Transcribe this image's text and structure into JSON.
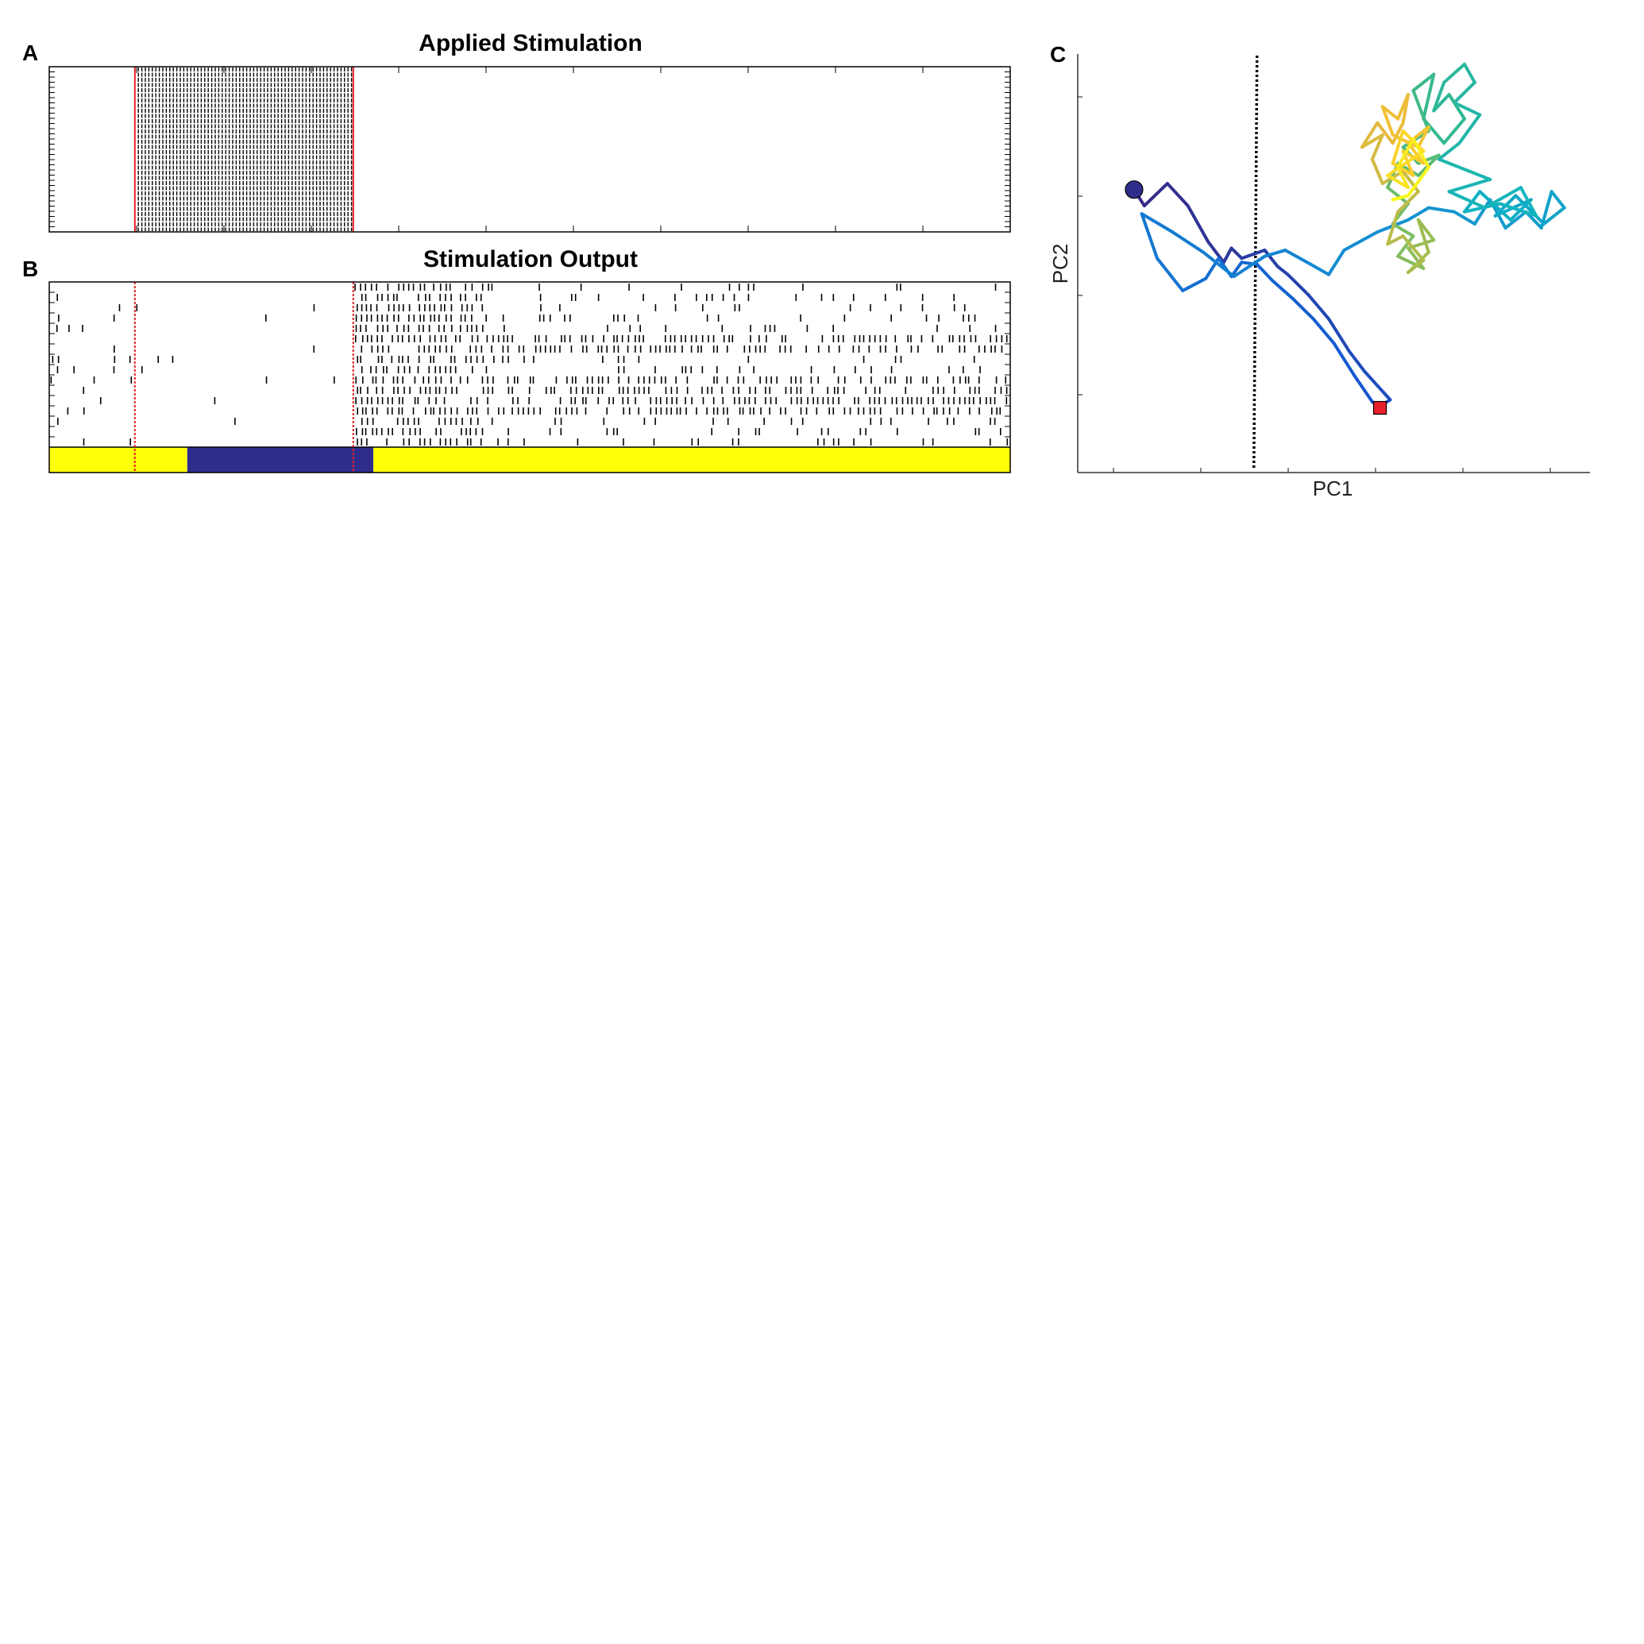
{
  "panels": {
    "a": {
      "letter": "A",
      "title": "Applied Stimulation"
    },
    "b": {
      "letter": "B",
      "title": "Stimulation Output"
    },
    "c": {
      "letter": "C",
      "xlabel": "PC1",
      "ylabel": "PC2"
    }
  },
  "colors": {
    "stim_marker": "#e8202a",
    "state_low": "#ffff0a",
    "state_high": "#2f2d8c",
    "boundary": "#000000",
    "start_marker": "#2f2d8c",
    "end_marker": "#e8202a"
  },
  "chart_data": [
    {
      "type": "raster",
      "panel": "A",
      "title": "Applied Stimulation",
      "xlim": [
        0,
        1100
      ],
      "channels": 32,
      "stim_window": [
        98,
        348
      ],
      "stim_interval": 4,
      "ticks": {
        "x": [
          0,
          100,
          200,
          300,
          400,
          500,
          600,
          700,
          800,
          900,
          1000,
          1100
        ]
      }
    },
    {
      "type": "raster",
      "panel": "B",
      "title": "Stimulation Output",
      "xlim": [
        0,
        1100
      ],
      "channels": 16,
      "stim_window": [
        98,
        348
      ],
      "state_bar": [
        {
          "start": 0,
          "end": 158,
          "state": "low"
        },
        {
          "start": 158,
          "end": 371,
          "state": "high"
        },
        {
          "start": 371,
          "end": 1100,
          "state": "low"
        }
      ],
      "spike_pattern": {
        "pre_rate": 0.12,
        "during_rate": 0.02,
        "post_burst_rate": 0.7,
        "post_rate": 0.3,
        "active_rows": [
          5,
          6,
          9,
          10,
          11,
          12
        ]
      }
    },
    {
      "type": "line",
      "panel": "C",
      "xlabel": "PC1",
      "ylabel": "PC2",
      "xlim": [
        0,
        10
      ],
      "ylim": [
        0,
        10
      ],
      "boundary_x": 3.5,
      "start_point": [
        1.1,
        7.0
      ],
      "end_point": [
        5.9,
        1.6
      ],
      "colormap": "parula",
      "trajectory": [
        [
          1.1,
          7.0
        ],
        [
          1.3,
          6.6
        ],
        [
          1.75,
          7.15
        ],
        [
          2.15,
          6.6
        ],
        [
          2.55,
          5.7
        ],
        [
          2.85,
          5.2
        ],
        [
          3.0,
          5.55
        ],
        [
          3.2,
          5.3
        ],
        [
          3.65,
          5.5
        ],
        [
          3.9,
          5.1
        ],
        [
          4.1,
          4.9
        ],
        [
          4.5,
          4.4
        ],
        [
          4.9,
          3.8
        ],
        [
          5.3,
          3.0
        ],
        [
          5.6,
          2.5
        ],
        [
          6.1,
          1.8
        ],
        [
          5.85,
          1.6
        ],
        [
          5.9,
          1.6
        ],
        [
          5.75,
          1.75
        ],
        [
          5.4,
          2.4
        ],
        [
          5.0,
          3.2
        ],
        [
          4.6,
          3.8
        ],
        [
          4.2,
          4.3
        ],
        [
          3.8,
          4.75
        ],
        [
          3.5,
          5.15
        ],
        [
          3.2,
          5.2
        ],
        [
          3.0,
          4.85
        ],
        [
          2.75,
          5.3
        ],
        [
          2.5,
          4.8
        ],
        [
          2.05,
          4.5
        ],
        [
          1.55,
          5.3
        ],
        [
          1.25,
          6.4
        ],
        [
          1.85,
          5.95
        ],
        [
          2.45,
          5.45
        ],
        [
          3.05,
          4.85
        ],
        [
          3.65,
          5.35
        ],
        [
          4.05,
          5.5
        ],
        [
          4.55,
          5.15
        ],
        [
          4.9,
          4.9
        ],
        [
          5.2,
          5.5
        ],
        [
          5.85,
          5.95
        ],
        [
          6.45,
          6.25
        ],
        [
          6.85,
          6.55
        ],
        [
          7.35,
          6.45
        ],
        [
          7.75,
          6.15
        ],
        [
          8.05,
          6.75
        ],
        [
          8.35,
          6.05
        ],
        [
          8.75,
          6.45
        ],
        [
          9.05,
          6.05
        ],
        [
          9.25,
          6.95
        ],
        [
          9.5,
          6.55
        ],
        [
          9.1,
          6.15
        ],
        [
          8.55,
          6.85
        ],
        [
          8.15,
          6.35
        ],
        [
          8.85,
          6.75
        ],
        [
          8.45,
          6.25
        ],
        [
          7.85,
          6.95
        ],
        [
          7.55,
          6.45
        ],
        [
          8.25,
          6.65
        ],
        [
          8.95,
          6.35
        ],
        [
          8.65,
          7.05
        ],
        [
          7.95,
          6.55
        ],
        [
          7.25,
          6.95
        ],
        [
          8.05,
          7.25
        ],
        [
          7.65,
          7.45
        ],
        [
          7.05,
          7.75
        ],
        [
          7.45,
          8.15
        ],
        [
          7.85,
          8.85
        ],
        [
          7.35,
          9.15
        ],
        [
          7.75,
          9.65
        ],
        [
          7.55,
          10.1
        ],
        [
          7.15,
          9.65
        ],
        [
          6.95,
          8.95
        ],
        [
          7.25,
          9.35
        ],
        [
          7.55,
          8.75
        ],
        [
          7.15,
          8.15
        ],
        [
          6.75,
          8.75
        ],
        [
          6.95,
          9.85
        ],
        [
          6.55,
          9.45
        ],
        [
          6.85,
          8.45
        ],
        [
          6.35,
          8.05
        ],
        [
          6.65,
          7.65
        ],
        [
          7.05,
          7.85
        ],
        [
          6.65,
          7.35
        ],
        [
          6.25,
          7.65
        ],
        [
          6.05,
          7.05
        ],
        [
          6.45,
          6.65
        ],
        [
          6.15,
          6.15
        ],
        [
          6.55,
          5.85
        ],
        [
          6.25,
          5.35
        ],
        [
          6.75,
          5.05
        ],
        [
          6.45,
          5.55
        ],
        [
          6.95,
          5.75
        ],
        [
          6.65,
          6.25
        ],
        [
          6.85,
          5.45
        ],
        [
          6.45,
          4.95
        ],
        [
          6.75,
          5.25
        ],
        [
          6.35,
          5.85
        ],
        [
          6.05,
          5.65
        ],
        [
          6.25,
          6.45
        ],
        [
          6.65,
          6.95
        ],
        [
          6.35,
          7.45
        ],
        [
          5.95,
          7.15
        ],
        [
          5.75,
          7.75
        ],
        [
          5.95,
          8.35
        ],
        [
          5.55,
          8.05
        ],
        [
          5.85,
          8.65
        ],
        [
          6.15,
          8.15
        ],
        [
          6.35,
          8.65
        ],
        [
          6.45,
          9.35
        ],
        [
          6.25,
          8.75
        ],
        [
          5.95,
          9.05
        ],
        [
          6.15,
          8.35
        ],
        [
          6.65,
          8.05
        ],
        [
          6.85,
          8.55
        ],
        [
          6.45,
          8.15
        ],
        [
          6.75,
          7.65
        ],
        [
          6.35,
          7.95
        ],
        [
          6.55,
          7.35
        ],
        [
          6.15,
          7.65
        ],
        [
          6.35,
          8.45
        ],
        [
          6.75,
          7.95
        ],
        [
          6.05,
          7.35
        ],
        [
          6.45,
          7.05
        ],
        [
          6.25,
          7.55
        ],
        [
          6.55,
          8.25
        ],
        [
          6.85,
          7.55
        ],
        [
          6.45,
          6.85
        ],
        [
          6.15,
          6.75
        ]
      ]
    }
  ]
}
